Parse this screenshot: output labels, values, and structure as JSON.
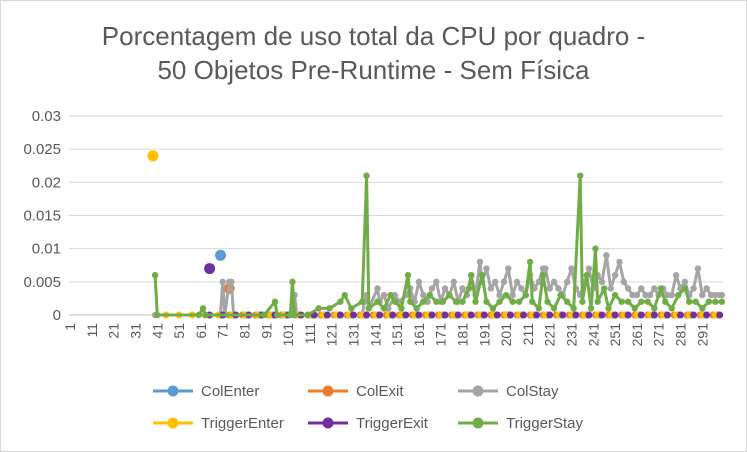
{
  "chart_data": {
    "type": "line",
    "title_line1": "Porcentagem de uso total da CPU por quadro -",
    "title_line2": "50 Objetos Pre-Runtime - Sem Física",
    "xlabel": "",
    "ylabel": "",
    "x_start": 1,
    "x_end": 300,
    "ylim": [
      0,
      0.03
    ],
    "yticks": [
      "0",
      "0.005",
      "0.01",
      "0.015",
      "0.02",
      "0.025",
      "0.03"
    ],
    "yticks_values": [
      0,
      0.005,
      0.01,
      0.015,
      0.02,
      0.025,
      0.03
    ],
    "xticks": [
      "1",
      "11",
      "21",
      "31",
      "41",
      "51",
      "61",
      "71",
      "81",
      "91",
      "101",
      "111",
      "121",
      "131",
      "141",
      "151",
      "161",
      "171",
      "181",
      "191",
      "201",
      "211",
      "221",
      "231",
      "241",
      "251",
      "261",
      "271",
      "281",
      "291"
    ],
    "grid": "horizontal",
    "legend_position": "bottom",
    "series": [
      {
        "name": "ColEnter",
        "color": "#5b9bd5",
        "markers": [
          [
            70,
            0.009
          ]
        ],
        "baseline_start": 70,
        "baseline_end": 300
      },
      {
        "name": "ColExit",
        "color": "#ed7d31",
        "markers": [
          [
            74,
            0.004
          ]
        ],
        "baseline_start": 74,
        "baseline_end": 300
      },
      {
        "name": "ColStay",
        "color": "#a5a5a5",
        "points": [
          [
            40,
            0
          ],
          [
            70,
            0
          ],
          [
            71,
            0.005
          ],
          [
            72,
            0
          ],
          [
            74,
            0.005
          ],
          [
            75,
            0.005
          ],
          [
            76,
            0
          ],
          [
            103,
            0
          ],
          [
            104,
            0.003
          ],
          [
            105,
            0
          ],
          [
            135,
            0
          ],
          [
            136,
            0.002
          ],
          [
            137,
            0.003
          ],
          [
            138,
            0.001
          ],
          [
            142,
            0.004
          ],
          [
            143,
            0.002
          ],
          [
            145,
            0.003
          ],
          [
            147,
            0.001
          ],
          [
            150,
            0.003
          ],
          [
            152,
            0.002
          ],
          [
            155,
            0.003
          ],
          [
            157,
            0.004
          ],
          [
            159,
            0.002
          ],
          [
            161,
            0.005
          ],
          [
            163,
            0.003
          ],
          [
            165,
            0.002
          ],
          [
            167,
            0.004
          ],
          [
            169,
            0.005
          ],
          [
            171,
            0.002
          ],
          [
            173,
            0.004
          ],
          [
            175,
            0.003
          ],
          [
            177,
            0.005
          ],
          [
            179,
            0.002
          ],
          [
            181,
            0.004
          ],
          [
            183,
            0.003
          ],
          [
            185,
            0.006
          ],
          [
            187,
            0.003
          ],
          [
            189,
            0.008
          ],
          [
            190,
            0.005
          ],
          [
            192,
            0.007
          ],
          [
            194,
            0.004
          ],
          [
            196,
            0.005
          ],
          [
            198,
            0.003
          ],
          [
            200,
            0.005
          ],
          [
            202,
            0.007
          ],
          [
            204,
            0.003
          ],
          [
            206,
            0.005
          ],
          [
            208,
            0.004
          ],
          [
            210,
            0.003
          ],
          [
            212,
            0.006
          ],
          [
            214,
            0.004
          ],
          [
            216,
            0.005
          ],
          [
            218,
            0.007
          ],
          [
            219,
            0.007
          ],
          [
            221,
            0.004
          ],
          [
            223,
            0.005
          ],
          [
            225,
            0.004
          ],
          [
            227,
            0.003
          ],
          [
            229,
            0.005
          ],
          [
            231,
            0.007
          ],
          [
            233,
            0.004
          ],
          [
            235,
            0.003
          ],
          [
            237,
            0.005
          ],
          [
            239,
            0.007
          ],
          [
            241,
            0.004
          ],
          [
            243,
            0.006
          ],
          [
            245,
            0.005
          ],
          [
            247,
            0.009
          ],
          [
            249,
            0.004
          ],
          [
            251,
            0.006
          ],
          [
            253,
            0.008
          ],
          [
            255,
            0.005
          ],
          [
            257,
            0.004
          ],
          [
            259,
            0.003
          ],
          [
            261,
            0.003
          ],
          [
            263,
            0.004
          ],
          [
            265,
            0.003
          ],
          [
            267,
            0.003
          ],
          [
            269,
            0.004
          ],
          [
            271,
            0.003
          ],
          [
            273,
            0.004
          ],
          [
            275,
            0.003
          ],
          [
            277,
            0.003
          ],
          [
            279,
            0.006
          ],
          [
            281,
            0.004
          ],
          [
            283,
            0.005
          ],
          [
            285,
            0.003
          ],
          [
            287,
            0.004
          ],
          [
            289,
            0.007
          ],
          [
            291,
            0.003
          ],
          [
            293,
            0.004
          ],
          [
            295,
            0.003
          ],
          [
            297,
            0.003
          ],
          [
            299,
            0.003
          ],
          [
            300,
            0.003
          ]
        ]
      },
      {
        "name": "TriggerEnter",
        "color": "#ffc000",
        "markers": [
          [
            39,
            0.024
          ]
        ],
        "baseline_start": 45,
        "baseline_end": 300
      },
      {
        "name": "TriggerExit",
        "color": "#7030a0",
        "markers": [
          [
            65,
            0.007
          ]
        ],
        "baseline_start": 65,
        "baseline_end": 300
      },
      {
        "name": "TriggerStay",
        "color": "#70ad47",
        "points": [
          [
            40,
            0.006
          ],
          [
            41,
            0
          ],
          [
            60,
            0
          ],
          [
            62,
            0.001
          ],
          [
            63,
            0
          ],
          [
            90,
            0
          ],
          [
            95,
            0.002
          ],
          [
            96,
            0
          ],
          [
            102,
            0
          ],
          [
            103,
            0.005
          ],
          [
            104,
            0
          ],
          [
            110,
            0
          ],
          [
            115,
            0.001
          ],
          [
            120,
            0.001
          ],
          [
            125,
            0.002
          ],
          [
            127,
            0.003
          ],
          [
            130,
            0.001
          ],
          [
            135,
            0.002
          ],
          [
            137,
            0.021
          ],
          [
            138,
            0.001
          ],
          [
            142,
            0.002
          ],
          [
            145,
            0.001
          ],
          [
            148,
            0.003
          ],
          [
            150,
            0.002
          ],
          [
            153,
            0.001
          ],
          [
            156,
            0.006
          ],
          [
            157,
            0.002
          ],
          [
            160,
            0.001
          ],
          [
            163,
            0.002
          ],
          [
            166,
            0.003
          ],
          [
            169,
            0.002
          ],
          [
            172,
            0.002
          ],
          [
            175,
            0.003
          ],
          [
            178,
            0.002
          ],
          [
            181,
            0.002
          ],
          [
            184,
            0.004
          ],
          [
            185,
            0.006
          ],
          [
            187,
            0.002
          ],
          [
            190,
            0.006
          ],
          [
            192,
            0.002
          ],
          [
            195,
            0.001
          ],
          [
            198,
            0.002
          ],
          [
            201,
            0.003
          ],
          [
            204,
            0.002
          ],
          [
            207,
            0.002
          ],
          [
            210,
            0.003
          ],
          [
            212,
            0.008
          ],
          [
            213,
            0.002
          ],
          [
            216,
            0.001
          ],
          [
            218,
            0.006
          ],
          [
            220,
            0.002
          ],
          [
            223,
            0.001
          ],
          [
            226,
            0.003
          ],
          [
            229,
            0.002
          ],
          [
            232,
            0.001
          ],
          [
            235,
            0.021
          ],
          [
            236,
            0.002
          ],
          [
            238,
            0.006
          ],
          [
            240,
            0.001
          ],
          [
            242,
            0.01
          ],
          [
            243,
            0.002
          ],
          [
            246,
            0.004
          ],
          [
            248,
            0.001
          ],
          [
            251,
            0.003
          ],
          [
            254,
            0.002
          ],
          [
            257,
            0.002
          ],
          [
            260,
            0.001
          ],
          [
            263,
            0.002
          ],
          [
            266,
            0.002
          ],
          [
            269,
            0.001
          ],
          [
            272,
            0.004
          ],
          [
            274,
            0.002
          ],
          [
            277,
            0.001
          ],
          [
            280,
            0.003
          ],
          [
            283,
            0.004
          ],
          [
            285,
            0.002
          ],
          [
            288,
            0.002
          ],
          [
            291,
            0.001
          ],
          [
            294,
            0.002
          ],
          [
            297,
            0.002
          ],
          [
            300,
            0.002
          ]
        ]
      }
    ]
  }
}
